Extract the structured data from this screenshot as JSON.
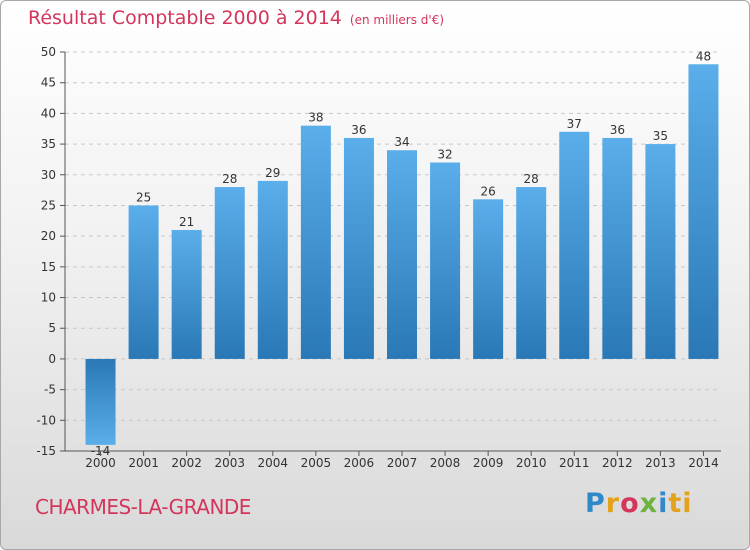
{
  "header": {
    "title": "Résultat Comptable 2000 à 2014",
    "subtitle": "(en milliers d'€)"
  },
  "footer": {
    "commune": "CHARMES-LA-GRANDE",
    "brand": [
      "P",
      "r",
      "o",
      "x",
      "i",
      "ti"
    ]
  },
  "colors": {
    "bar_top": "#5aaeea",
    "bar_bottom": "#2a78b6",
    "text_accent": "#d3355b",
    "axis": "#555555"
  },
  "chart_data": {
    "type": "bar",
    "title": "Résultat Comptable 2000 à 2014",
    "ylabel": "",
    "xlabel": "",
    "categories": [
      "2000",
      "2001",
      "2002",
      "2003",
      "2004",
      "2005",
      "2006",
      "2007",
      "2008",
      "2009",
      "2010",
      "2011",
      "2012",
      "2013",
      "2014"
    ],
    "values": [
      -14,
      25,
      21,
      28,
      29,
      38,
      36,
      34,
      32,
      26,
      28,
      37,
      36,
      35,
      48
    ],
    "ylim": [
      -15,
      50
    ],
    "yticks": [
      -15,
      -10,
      -5,
      0,
      5,
      10,
      15,
      20,
      25,
      30,
      35,
      40,
      45,
      50
    ],
    "ytick_labels": [
      "-15",
      "-10",
      "-5",
      "0",
      "5",
      "10",
      "15",
      "20",
      "25",
      "30",
      "35",
      "40",
      "45",
      "50"
    ],
    "grid": true
  }
}
